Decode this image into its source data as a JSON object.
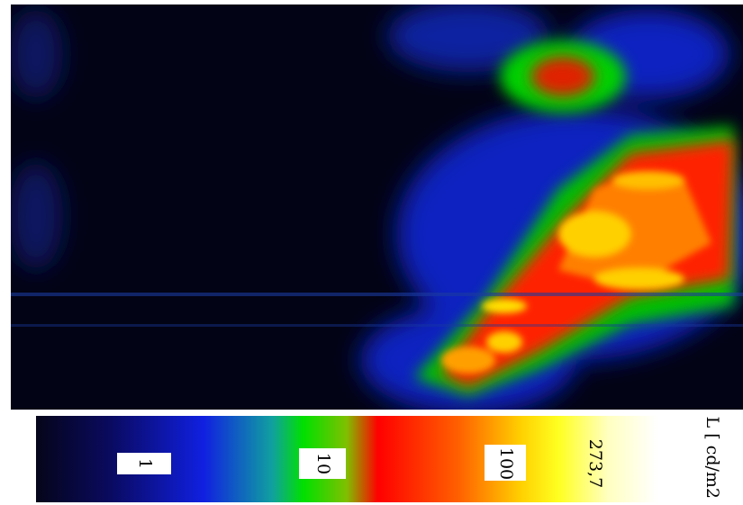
{
  "colorbar": {
    "ticks": [
      "1",
      "10",
      "100",
      "273,7"
    ],
    "unit": "L [ cd/m2 ]"
  }
}
